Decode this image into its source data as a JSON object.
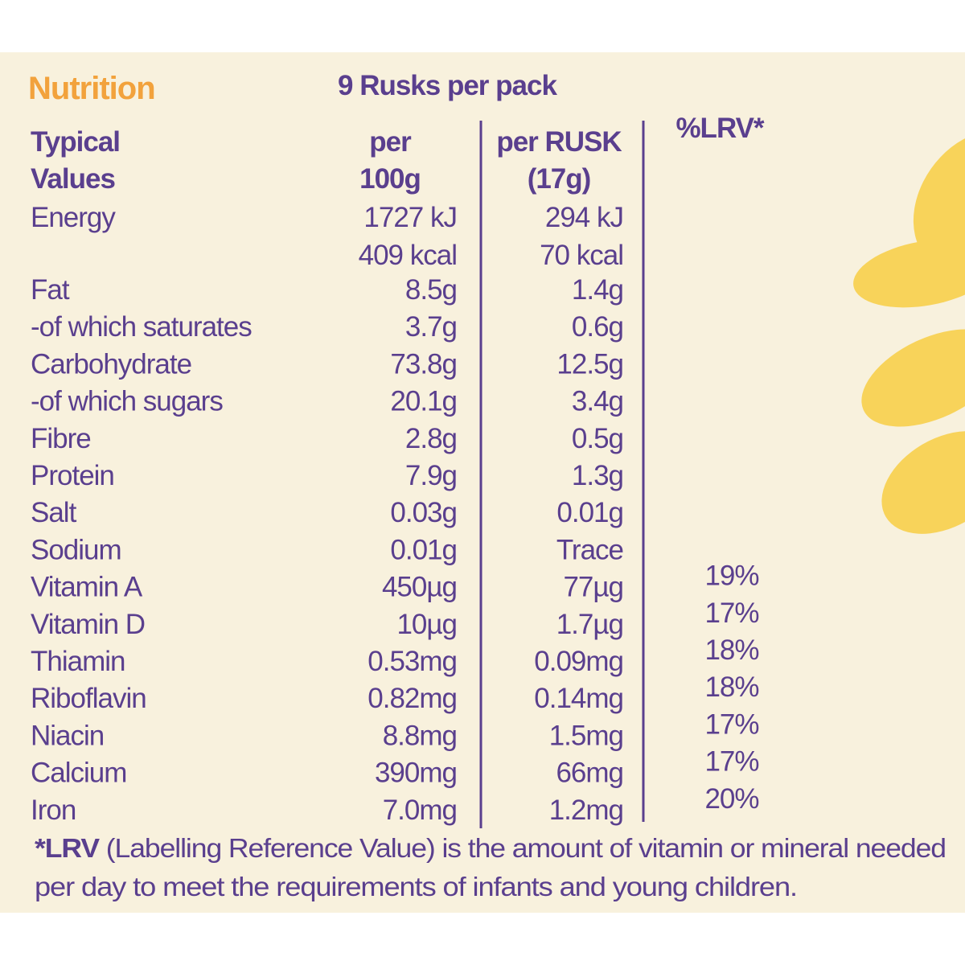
{
  "title": "Nutrition",
  "subtitle": "9 Rusks per pack",
  "header": [
    [
      "Typical",
      "Values"
    ],
    [
      "per",
      "100g"
    ],
    [
      "per RUSK",
      "(17g)"
    ],
    [
      "%LRV*"
    ]
  ],
  "rows": [
    {
      "label": "Energy",
      "per_100g": [
        "1727 kJ",
        "409 kcal"
      ],
      "per_rusk": [
        "294 kJ",
        "70 kcal"
      ]
    },
    {
      "label": "Fat",
      "per_100g": "8.5g",
      "per_rusk": "1.4g"
    },
    {
      "label": "-of which saturates",
      "per_100g": "3.7g",
      "per_rusk": "0.6g"
    },
    {
      "label": "Carbohydrate",
      "per_100g": "73.8g",
      "per_rusk": "12.5g"
    },
    {
      "label": "-of which sugars",
      "per_100g": "20.1g",
      "per_rusk": "3.4g"
    },
    {
      "label": "Fibre",
      "per_100g": "2.8g",
      "per_rusk": "0.5g"
    },
    {
      "label": "Protein",
      "per_100g": "7.9g",
      "per_rusk": "1.3g"
    },
    {
      "label": "Salt",
      "per_100g": "0.03g",
      "per_rusk": "0.01g"
    },
    {
      "label": "Sodium",
      "per_100g": "0.01g",
      "per_rusk": "Trace"
    },
    {
      "label": "Vitamin A",
      "per_100g": "450µg",
      "per_rusk": "77µg",
      "lrv": "19%"
    },
    {
      "label": "Vitamin D",
      "per_100g": "10µg",
      "per_rusk": "1.7µg",
      "lrv": "17%"
    },
    {
      "label": "Thiamin",
      "per_100g": "0.53mg",
      "per_rusk": "0.09mg",
      "lrv": "18%"
    },
    {
      "label": "Riboflavin",
      "per_100g": "0.82mg",
      "per_rusk": "0.14mg",
      "lrv": "18%"
    },
    {
      "label": "Niacin",
      "per_100g": "8.8mg",
      "per_rusk": "1.5mg",
      "lrv": "17%"
    },
    {
      "label": "Calcium",
      "per_100g": "390mg",
      "per_rusk": "66mg",
      "lrv": "17%"
    },
    {
      "label": "Iron",
      "per_100g": "7.0mg",
      "per_rusk": "1.2mg",
      "lrv": "20%"
    }
  ],
  "footnote": {
    "bold": "*LRV",
    "line1": " (Labelling Reference Value) is the amount of vitamin or mineral needed",
    "line2": "per day to meet the requirements of infants and young children."
  }
}
